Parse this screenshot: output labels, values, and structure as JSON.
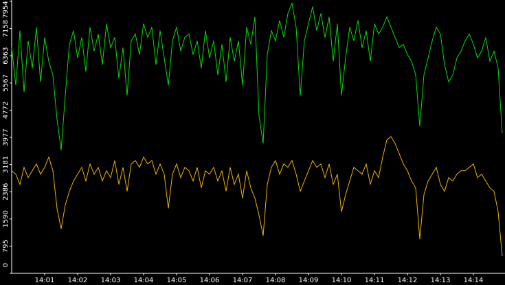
{
  "chart_data": {
    "type": "line",
    "categories": [
      null,
      null,
      null,
      null,
      null,
      null,
      null,
      null,
      "14:01",
      null,
      null,
      null,
      null,
      null,
      null,
      null,
      "14:02",
      null,
      null,
      null,
      null,
      null,
      null,
      null,
      "14:03",
      null,
      null,
      null,
      null,
      null,
      null,
      null,
      "14:04",
      null,
      null,
      null,
      null,
      null,
      null,
      null,
      "14:05",
      null,
      null,
      null,
      null,
      null,
      null,
      null,
      "14:06",
      null,
      null,
      null,
      null,
      null,
      null,
      null,
      "14:07",
      null,
      null,
      null,
      null,
      null,
      null,
      null,
      "14:08",
      null,
      null,
      null,
      null,
      null,
      null,
      null,
      "14:09",
      null,
      null,
      null,
      null,
      null,
      null,
      null,
      "14:10",
      null,
      null,
      null,
      null,
      null,
      null,
      null,
      "14:11",
      null,
      null,
      null,
      null,
      null,
      null,
      null,
      "14:12",
      null,
      null,
      null,
      null,
      null,
      null,
      null,
      "14:13",
      null,
      null,
      null,
      null,
      null,
      null,
      null,
      "14:14",
      null,
      null,
      null,
      null,
      null,
      null,
      null
    ],
    "series": [
      {
        "color": "#00e000",
        "values": [
          6600,
          5500,
          7100,
          5300,
          6800,
          6000,
          7200,
          5600,
          6900,
          6200,
          5800,
          4500,
          3600,
          5200,
          6700,
          7100,
          6300,
          6900,
          5900,
          7200,
          6500,
          7000,
          6100,
          7300,
          6600,
          6900,
          5700,
          6600,
          5200,
          6800,
          7000,
          6400,
          7300,
          6900,
          7200,
          6100,
          7100,
          6300,
          5500,
          6800,
          7200,
          6500,
          6900,
          7000,
          6400,
          6800,
          6000,
          7100,
          6300,
          6800,
          5800,
          6700,
          5600,
          6900,
          6200,
          6800,
          5500,
          7200,
          6700,
          7500,
          4600,
          3800,
          6400,
          7100,
          6800,
          7400,
          6900,
          7600,
          7900,
          7200,
          5200,
          6800,
          7300,
          7800,
          7100,
          7600,
          6900,
          7500,
          6200,
          7300,
          5200,
          6300,
          7200,
          6800,
          7400,
          6600,
          7100,
          6200,
          7300,
          7000,
          7200,
          7500,
          7200,
          6900,
          6600,
          6700,
          6400,
          6200,
          5800,
          4300,
          5800,
          6300,
          6800,
          7200,
          7000,
          6100,
          5600,
          5800,
          6300,
          6500,
          6800,
          7000,
          6700,
          6300,
          6500,
          6900,
          6200,
          6500,
          6000,
          4100
        ]
      },
      {
        "color": "#f0b400",
        "values": [
          3000,
          2900,
          2600,
          3100,
          2800,
          3000,
          3200,
          2900,
          3100,
          3400,
          3000,
          1900,
          1300,
          2000,
          2400,
          2700,
          2900,
          3100,
          2700,
          3200,
          2900,
          3100,
          2700,
          3000,
          2800,
          3300,
          2600,
          3100,
          2400,
          3200,
          3300,
          3100,
          3400,
          3200,
          3300,
          2900,
          3200,
          2900,
          1900,
          2900,
          3200,
          2800,
          3100,
          3000,
          2700,
          3100,
          2500,
          3000,
          2900,
          3100,
          2700,
          3000,
          2400,
          3100,
          2600,
          2900,
          2200,
          3000,
          2500,
          2200,
          1700,
          1100,
          2600,
          3100,
          3300,
          2900,
          3200,
          3100,
          3300,
          2900,
          2400,
          2700,
          3000,
          3300,
          3100,
          3200,
          2800,
          3200,
          2600,
          2900,
          1800,
          2300,
          2700,
          3100,
          3000,
          2900,
          3200,
          2600,
          3000,
          2800,
          3400,
          3900,
          4000,
          3800,
          3500,
          3200,
          3000,
          2700,
          2500,
          1000,
          2300,
          2700,
          2900,
          3100,
          2600,
          2400,
          2800,
          2700,
          2900,
          3000,
          3000,
          3100,
          3200,
          2800,
          2900,
          2700,
          2500,
          2400,
          1800,
          500
        ]
      }
    ],
    "ylim": [
      0,
      7954
    ],
    "yticks": [
      0,
      795,
      1590,
      2386,
      3181,
      3977,
      4772,
      5567,
      6363,
      7158,
      7954
    ],
    "axis_color": "#ffffff"
  }
}
